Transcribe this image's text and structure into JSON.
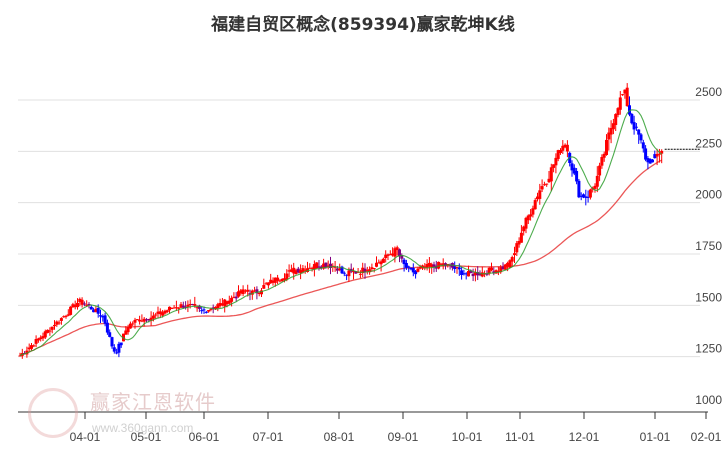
{
  "title": "福建自贸区概念(859394)赢家乾坤K线",
  "watermark": {
    "brand": "赢家江恩软件",
    "url": "www.360gann.com",
    "seal": "江赢恩家"
  },
  "colors": {
    "up": "#ff0000",
    "down": "#0000ff",
    "mixed": "#800080",
    "ma_short": "#2e9e2e",
    "ma_long": "#e83a3a",
    "grid": "#e0e0e0",
    "axis": "#333333"
  },
  "chart_data": {
    "type": "candlestick",
    "title": "福建自贸区概念(859394)赢家乾坤K线",
    "xlabel": "",
    "ylabel": "",
    "ylim": [
      1000,
      2600
    ],
    "yticks": [
      1000,
      1250,
      1500,
      1750,
      2000,
      2250,
      2500
    ],
    "xticks": [
      "04-01",
      "05-01",
      "06-01",
      "07-01",
      "08-01",
      "09-01",
      "10-01",
      "11-01",
      "12-01",
      "01-01",
      "02-01"
    ],
    "grid": true,
    "last_price_line": 2260,
    "series_path": [
      [
        "03-15",
        1395
      ],
      [
        "03-20",
        1440
      ],
      [
        "03-25",
        1490
      ],
      [
        "03-28",
        1520
      ],
      [
        "04-03",
        1495
      ],
      [
        "04-06",
        1470
      ],
      [
        "04-10",
        1445
      ],
      [
        "04-14",
        1310
      ],
      [
        "04-16",
        1265
      ],
      [
        "04-19",
        1330
      ],
      [
        "04-22",
        1400
      ],
      [
        "04-27",
        1430
      ],
      [
        "05-05",
        1445
      ],
      [
        "05-10",
        1470
      ],
      [
        "05-15",
        1490
      ],
      [
        "05-20",
        1500
      ],
      [
        "05-25",
        1490
      ],
      [
        "05-30",
        1470
      ],
      [
        "06-05",
        1490
      ],
      [
        "06-10",
        1510
      ],
      [
        "06-15",
        1540
      ],
      [
        "06-20",
        1570
      ],
      [
        "06-25",
        1560
      ],
      [
        "06-30",
        1600
      ],
      [
        "07-05",
        1630
      ],
      [
        "07-10",
        1660
      ],
      [
        "07-15",
        1680
      ],
      [
        "07-20",
        1690
      ],
      [
        "07-25",
        1700
      ],
      [
        "07-30",
        1690
      ],
      [
        "08-03",
        1650
      ],
      [
        "08-08",
        1660
      ],
      [
        "08-12",
        1670
      ],
      [
        "08-18",
        1700
      ],
      [
        "08-24",
        1740
      ],
      [
        "08-28",
        1770
      ],
      [
        "09-01",
        1700
      ],
      [
        "09-05",
        1660
      ],
      [
        "09-10",
        1680
      ],
      [
        "09-15",
        1690
      ],
      [
        "09-20",
        1700
      ],
      [
        "09-25",
        1680
      ],
      [
        "10-01",
        1650
      ],
      [
        "10-10",
        1660
      ],
      [
        "10-15",
        1670
      ],
      [
        "10-20",
        1680
      ],
      [
        "10-25",
        1700
      ],
      [
        "10-28",
        1760
      ],
      [
        "11-02",
        1870
      ],
      [
        "11-06",
        1960
      ],
      [
        "11-10",
        2060
      ],
      [
        "11-14",
        2120
      ],
      [
        "11-18",
        2220
      ],
      [
        "11-22",
        2300
      ],
      [
        "11-26",
        2150
      ],
      [
        "11-29",
        2030
      ],
      [
        "12-03",
        2040
      ],
      [
        "12-06",
        2100
      ],
      [
        "12-09",
        2220
      ],
      [
        "12-12",
        2350
      ],
      [
        "12-15",
        2470
      ],
      [
        "12-18",
        2540
      ],
      [
        "12-21",
        2400
      ],
      [
        "12-24",
        2330
      ],
      [
        "12-27",
        2220
      ],
      [
        "12-30",
        2200
      ],
      [
        "01-02",
        2230
      ],
      [
        "01-05",
        2260
      ]
    ]
  }
}
